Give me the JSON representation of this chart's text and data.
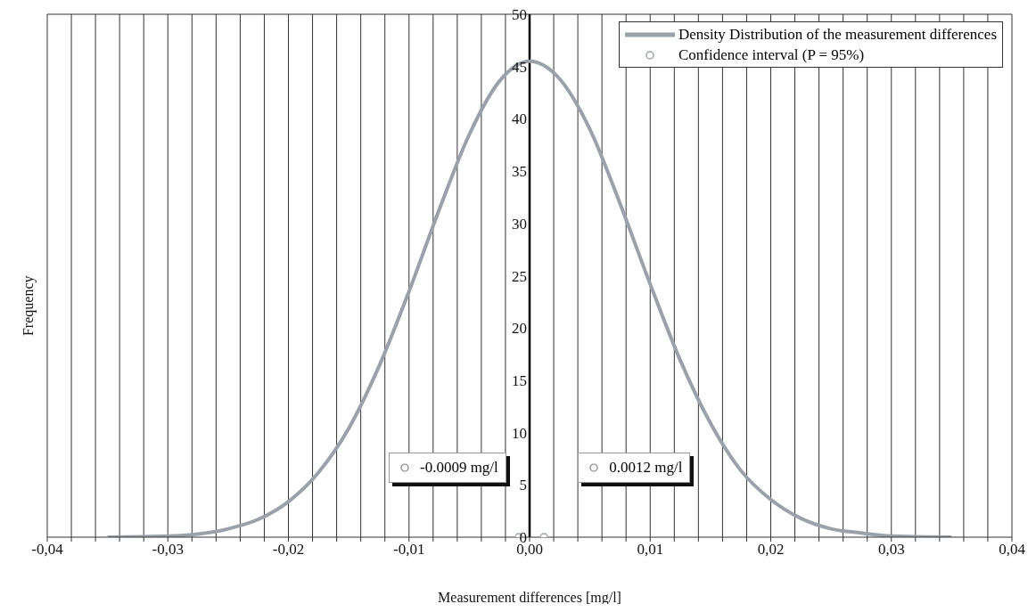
{
  "chart_data": {
    "type": "line",
    "xlabel": "Measurement differences [mg/l]",
    "ylabel": "Frequency",
    "xlim": [
      -0.04,
      0.04
    ],
    "ylim": [
      0,
      50
    ],
    "xticks": [
      {
        "value": -0.04,
        "label": "-0,04"
      },
      {
        "value": -0.038,
        "label": null
      },
      {
        "value": -0.036,
        "label": null
      },
      {
        "value": -0.034,
        "label": null
      },
      {
        "value": -0.032,
        "label": null
      },
      {
        "value": -0.03,
        "label": "-0,03"
      },
      {
        "value": -0.028,
        "label": null
      },
      {
        "value": -0.026,
        "label": null
      },
      {
        "value": -0.024,
        "label": null
      },
      {
        "value": -0.022,
        "label": null
      },
      {
        "value": -0.02,
        "label": "-0,02"
      },
      {
        "value": -0.018,
        "label": null
      },
      {
        "value": -0.016,
        "label": null
      },
      {
        "value": -0.014,
        "label": null
      },
      {
        "value": -0.012,
        "label": null
      },
      {
        "value": -0.01,
        "label": "-0,01"
      },
      {
        "value": -0.008,
        "label": null
      },
      {
        "value": -0.006,
        "label": null
      },
      {
        "value": -0.004,
        "label": null
      },
      {
        "value": -0.002,
        "label": null
      },
      {
        "value": 0,
        "label": "0,00"
      },
      {
        "value": 0.002,
        "label": null
      },
      {
        "value": 0.004,
        "label": null
      },
      {
        "value": 0.006,
        "label": null
      },
      {
        "value": 0.008,
        "label": null
      },
      {
        "value": 0.01,
        "label": "0,01"
      },
      {
        "value": 0.012,
        "label": null
      },
      {
        "value": 0.014,
        "label": null
      },
      {
        "value": 0.016,
        "label": null
      },
      {
        "value": 0.018,
        "label": null
      },
      {
        "value": 0.02,
        "label": "0,02"
      },
      {
        "value": 0.022,
        "label": null
      },
      {
        "value": 0.024,
        "label": null
      },
      {
        "value": 0.026,
        "label": null
      },
      {
        "value": 0.028,
        "label": null
      },
      {
        "value": 0.03,
        "label": "0,03"
      },
      {
        "value": 0.032,
        "label": null
      },
      {
        "value": 0.034,
        "label": null
      },
      {
        "value": 0.036,
        "label": null
      },
      {
        "value": 0.038,
        "label": null
      },
      {
        "value": 0.04,
        "label": "0,04"
      }
    ],
    "yticks": [
      0,
      5,
      10,
      15,
      20,
      25,
      30,
      35,
      40,
      45,
      50
    ],
    "grid": "x",
    "legend": "top right",
    "series": [
      {
        "name": "Density Distribution of the measurement differences",
        "color": "#9aa1a8",
        "line_style": "solid",
        "x": [
          -0.035,
          -0.03,
          -0.0275,
          -0.025,
          -0.0225,
          -0.02,
          -0.0175,
          -0.015,
          -0.0125,
          -0.01,
          -0.0075,
          -0.005,
          -0.0025,
          0,
          0.0025,
          0.005,
          0.0075,
          0.01,
          0.0125,
          0.015,
          0.0175,
          0.02,
          0.0225,
          0.025,
          0.0275,
          0.03,
          0.035
        ],
        "values": [
          0,
          0.1,
          0.3,
          0.8,
          1.7,
          3.4,
          6.2,
          10.4,
          16.3,
          23.5,
          31.3,
          38.5,
          43.6,
          45.5,
          43.8,
          39,
          31.9,
          24.2,
          16.9,
          10.9,
          6.4,
          3.6,
          1.8,
          0.8,
          0.4,
          0.1,
          0
        ]
      },
      {
        "type": "scatter",
        "name": "Confidence interval (P = 95%)",
        "color": "#9aa1a8",
        "marker": "circle",
        "x": [
          -0.0009,
          0.0012
        ],
        "values": [
          0,
          0
        ]
      }
    ],
    "annotations": [
      "-0.0009 mg/l",
      "0.0012 mg/l"
    ]
  }
}
